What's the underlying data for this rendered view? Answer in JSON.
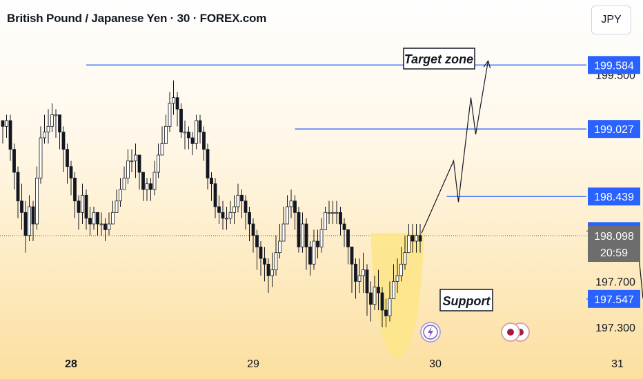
{
  "header": {
    "title": "British Pound / Japanese Yen · 30 · FOREX.com",
    "currency": "JPY"
  },
  "colors": {
    "line": "#2962ff",
    "candle": "#131722",
    "support_zone": "#fde58a",
    "arrow": "#131722"
  },
  "chart_data": {
    "type": "candlestick",
    "symbol": "British Pound / Japanese Yen",
    "interval": "30",
    "source": "FOREX.com",
    "ylim": [
      196.85,
      200.15
    ],
    "x_labels": [
      {
        "label": "28",
        "bold": true,
        "bar": 18
      },
      {
        "label": "29",
        "bold": false,
        "bar": 66
      },
      {
        "label": "30",
        "bold": false,
        "bar": 114
      },
      {
        "label": "31",
        "bold": false,
        "bar": 162
      }
    ],
    "y_axis_labels": [
      "199.500",
      "197.700",
      "197.300"
    ],
    "price_labels": [
      {
        "value": "199.584",
        "price": 199.584
      },
      {
        "value": "199.027",
        "price": 199.027
      },
      {
        "value": "198.439",
        "price": 198.439
      },
      {
        "value": "198.138",
        "price": 198.138
      }
    ],
    "current_price": {
      "value": "198.098",
      "price": 198.098,
      "countdown": "20:59"
    },
    "support_label": {
      "value": "197.547",
      "price": 197.547
    },
    "levels": [
      {
        "price": 199.584,
        "from_bar": 22,
        "name": "Target zone"
      },
      {
        "price": 199.027,
        "from_bar": 77
      },
      {
        "price": 198.439,
        "from_bar": 117
      },
      {
        "price": 198.138,
        "from_bar": 166
      },
      {
        "price": 197.547,
        "from_bar": 157,
        "name": "Support"
      }
    ],
    "annotations": {
      "target": "Target zone",
      "support": "Support"
    },
    "close": [
      199.05,
      199.1,
      198.85,
      198.65,
      198.4,
      198.3,
      198.1,
      198.35,
      198.2,
      198.6,
      198.95,
      199.0,
      199.05,
      199.15,
      199.15,
      199.0,
      198.85,
      198.7,
      198.6,
      198.4,
      198.3,
      198.45,
      198.25,
      198.2,
      198.3,
      198.2,
      198.2,
      198.15,
      198.2,
      198.3,
      198.4,
      198.5,
      198.6,
      198.75,
      198.75,
      198.8,
      198.65,
      198.5,
      198.55,
      198.5,
      198.65,
      198.8,
      198.9,
      199.05,
      199.25,
      199.3,
      199.2,
      199.0,
      199.0,
      198.95,
      198.9,
      199.1,
      199.0,
      198.85,
      198.6,
      198.55,
      198.35,
      198.3,
      198.25,
      198.25,
      198.3,
      198.35,
      198.45,
      198.4,
      198.3,
      198.2,
      198.1,
      198.0,
      197.9,
      197.85,
      197.75,
      197.8,
      197.95,
      198.05,
      198.2,
      198.35,
      198.4,
      198.3,
      198.0,
      198.2,
      198.0,
      197.85,
      198.05,
      198.0,
      198.15,
      198.3,
      198.3,
      198.3,
      198.3,
      198.2,
      198.15,
      198.0,
      197.85,
      197.7,
      197.75,
      197.8,
      197.6,
      197.5,
      197.65,
      197.6,
      197.45,
      197.4,
      197.55,
      197.7,
      197.75,
      197.85,
      197.95,
      198.1,
      198.05,
      198.1,
      198.05
    ],
    "range": [
      [
        199.1,
        198.9
      ],
      [
        199.15,
        198.95
      ],
      [
        199.15,
        198.75
      ],
      [
        198.9,
        198.5
      ],
      [
        198.7,
        198.25
      ],
      [
        198.55,
        198.15
      ],
      [
        198.4,
        197.95
      ],
      [
        198.45,
        198.05
      ],
      [
        198.4,
        198.05
      ],
      [
        198.7,
        198.15
      ],
      [
        199.05,
        198.55
      ],
      [
        199.15,
        198.9
      ],
      [
        199.2,
        198.9
      ],
      [
        199.25,
        199.0
      ],
      [
        199.2,
        198.95
      ],
      [
        199.15,
        198.85
      ],
      [
        199.05,
        198.65
      ],
      [
        198.9,
        198.55
      ],
      [
        198.75,
        198.45
      ],
      [
        198.65,
        198.25
      ],
      [
        198.45,
        198.15
      ],
      [
        198.55,
        198.2
      ],
      [
        198.5,
        198.15
      ],
      [
        198.35,
        198.1
      ],
      [
        198.35,
        198.15
      ],
      [
        198.3,
        198.1
      ],
      [
        198.3,
        198.1
      ],
      [
        198.25,
        198.05
      ],
      [
        198.3,
        198.1
      ],
      [
        198.4,
        198.2
      ],
      [
        198.5,
        198.3
      ],
      [
        198.6,
        198.35
      ],
      [
        198.7,
        198.5
      ],
      [
        198.85,
        198.55
      ],
      [
        198.85,
        198.65
      ],
      [
        198.9,
        198.6
      ],
      [
        198.8,
        198.5
      ],
      [
        198.65,
        198.4
      ],
      [
        198.6,
        198.4
      ],
      [
        198.6,
        198.4
      ],
      [
        198.75,
        198.45
      ],
      [
        198.9,
        198.6
      ],
      [
        199.05,
        198.8
      ],
      [
        199.15,
        198.9
      ],
      [
        199.35,
        199.0
      ],
      [
        199.45,
        199.15
      ],
      [
        199.35,
        199.05
      ],
      [
        199.25,
        198.95
      ],
      [
        199.1,
        198.85
      ],
      [
        199.05,
        198.85
      ],
      [
        199.0,
        198.8
      ],
      [
        199.15,
        198.85
      ],
      [
        199.15,
        198.9
      ],
      [
        199.05,
        198.75
      ],
      [
        198.9,
        198.5
      ],
      [
        198.65,
        198.4
      ],
      [
        198.6,
        198.25
      ],
      [
        198.45,
        198.2
      ],
      [
        198.4,
        198.15
      ],
      [
        198.35,
        198.15
      ],
      [
        198.4,
        198.2
      ],
      [
        198.45,
        198.2
      ],
      [
        198.55,
        198.3
      ],
      [
        198.5,
        198.25
      ],
      [
        198.45,
        198.15
      ],
      [
        198.35,
        198.05
      ],
      [
        198.25,
        197.95
      ],
      [
        198.15,
        197.8
      ],
      [
        198.05,
        197.75
      ],
      [
        198.0,
        197.7
      ],
      [
        197.9,
        197.6
      ],
      [
        197.95,
        197.65
      ],
      [
        198.1,
        197.75
      ],
      [
        198.2,
        197.9
      ],
      [
        198.35,
        198.05
      ],
      [
        198.45,
        198.2
      ],
      [
        198.5,
        198.25
      ],
      [
        198.45,
        198.15
      ],
      [
        198.35,
        197.95
      ],
      [
        198.3,
        197.95
      ],
      [
        198.25,
        197.8
      ],
      [
        198.05,
        197.75
      ],
      [
        198.15,
        197.8
      ],
      [
        198.15,
        197.9
      ],
      [
        198.25,
        197.95
      ],
      [
        198.35,
        198.15
      ],
      [
        198.4,
        198.2
      ],
      [
        198.4,
        198.2
      ],
      [
        198.4,
        198.2
      ],
      [
        198.35,
        198.1
      ],
      [
        198.25,
        198.0
      ],
      [
        198.15,
        197.85
      ],
      [
        198.0,
        197.6
      ],
      [
        197.9,
        197.55
      ],
      [
        197.9,
        197.6
      ],
      [
        197.95,
        197.6
      ],
      [
        197.85,
        197.4
      ],
      [
        197.7,
        197.35
      ],
      [
        197.75,
        197.45
      ],
      [
        197.8,
        197.45
      ],
      [
        197.65,
        197.3
      ],
      [
        197.55,
        197.3
      ],
      [
        197.7,
        197.35
      ],
      [
        197.85,
        197.55
      ],
      [
        197.9,
        197.6
      ],
      [
        198.0,
        197.7
      ],
      [
        198.1,
        197.8
      ],
      [
        198.2,
        197.95
      ],
      [
        198.2,
        197.95
      ],
      [
        198.2,
        197.95
      ],
      [
        198.2,
        197.95
      ]
    ]
  }
}
